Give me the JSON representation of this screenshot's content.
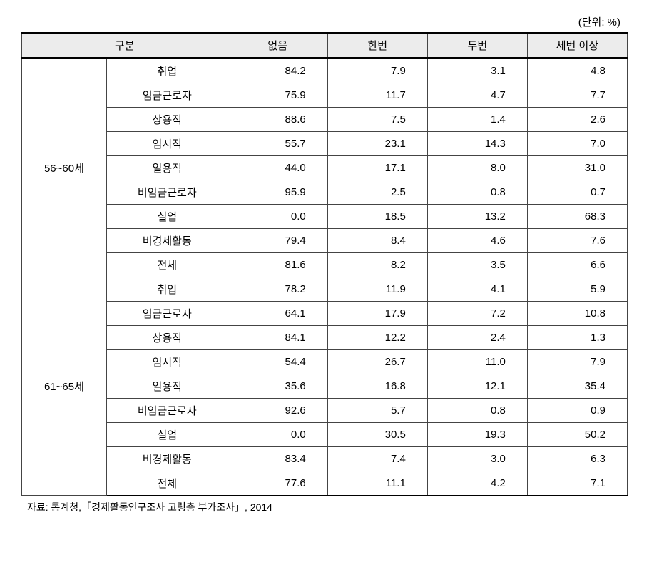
{
  "type": "table",
  "unit_label": "(단위: %)",
  "columns": {
    "group_header": "구분",
    "cols": [
      "없음",
      "한번",
      "두번",
      "세번 이상"
    ]
  },
  "groups": [
    {
      "label": "56~60세",
      "rows": [
        {
          "cat": "취업",
          "vals": [
            "84.2",
            "7.9",
            "3.1",
            "4.8"
          ]
        },
        {
          "cat": "임금근로자",
          "vals": [
            "75.9",
            "11.7",
            "4.7",
            "7.7"
          ]
        },
        {
          "cat": "상용직",
          "vals": [
            "88.6",
            "7.5",
            "1.4",
            "2.6"
          ]
        },
        {
          "cat": "임시직",
          "vals": [
            "55.7",
            "23.1",
            "14.3",
            "7.0"
          ]
        },
        {
          "cat": "일용직",
          "vals": [
            "44.0",
            "17.1",
            "8.0",
            "31.0"
          ]
        },
        {
          "cat": "비임금근로자",
          "vals": [
            "95.9",
            "2.5",
            "0.8",
            "0.7"
          ]
        },
        {
          "cat": "실업",
          "vals": [
            "0.0",
            "18.5",
            "13.2",
            "68.3"
          ]
        },
        {
          "cat": "비경제활동",
          "vals": [
            "79.4",
            "8.4",
            "4.6",
            "7.6"
          ]
        },
        {
          "cat": "전체",
          "vals": [
            "81.6",
            "8.2",
            "3.5",
            "6.6"
          ]
        }
      ]
    },
    {
      "label": "61~65세",
      "rows": [
        {
          "cat": "취업",
          "vals": [
            "78.2",
            "11.9",
            "4.1",
            "5.9"
          ]
        },
        {
          "cat": "임금근로자",
          "vals": [
            "64.1",
            "17.9",
            "7.2",
            "10.8"
          ]
        },
        {
          "cat": "상용직",
          "vals": [
            "84.1",
            "12.2",
            "2.4",
            "1.3"
          ]
        },
        {
          "cat": "임시직",
          "vals": [
            "54.4",
            "26.7",
            "11.0",
            "7.9"
          ]
        },
        {
          "cat": "일용직",
          "vals": [
            "35.6",
            "16.8",
            "12.1",
            "35.4"
          ]
        },
        {
          "cat": "비임금근로자",
          "vals": [
            "92.6",
            "5.7",
            "0.8",
            "0.9"
          ]
        },
        {
          "cat": "실업",
          "vals": [
            "0.0",
            "30.5",
            "19.3",
            "50.2"
          ]
        },
        {
          "cat": "비경제활동",
          "vals": [
            "83.4",
            "7.4",
            "3.0",
            "6.3"
          ]
        },
        {
          "cat": "전체",
          "vals": [
            "77.6",
            "11.1",
            "4.2",
            "7.1"
          ]
        }
      ]
    }
  ],
  "footnote": "자료: 통계청,「경제활동인구조사 고령층 부가조사」, 2014",
  "style": {
    "background_color": "#ffffff",
    "header_bg": "#ececec",
    "border_color": "#444444",
    "heavy_border_color": "#000000",
    "font_size_pt": 11,
    "font_family": "Malgun Gothic",
    "text_color": "#000000",
    "cell_text_align": "right",
    "category_text_align": "center",
    "col_widths_pct": [
      14,
      20,
      16.5,
      16.5,
      16.5,
      16.5
    ]
  }
}
